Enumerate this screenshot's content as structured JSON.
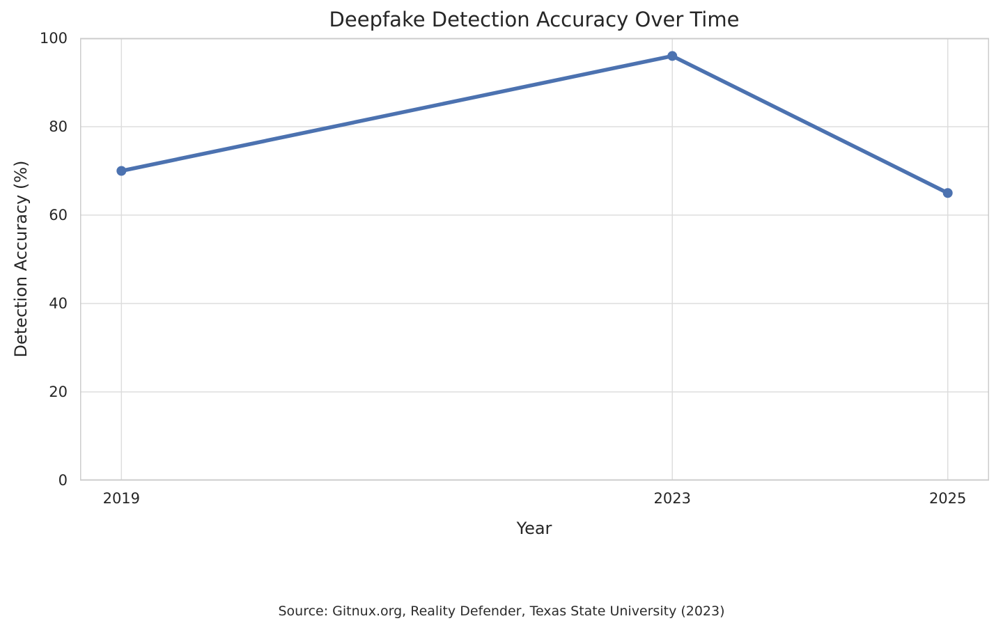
{
  "chart_data": {
    "type": "line",
    "title": "Deepfake Detection Accuracy Over Time",
    "xlabel": "Year",
    "ylabel": "Detection Accuracy (%)",
    "x": [
      2019,
      2023,
      2025
    ],
    "values": [
      70,
      96,
      65
    ],
    "xticks": [
      2019,
      2023,
      2025
    ],
    "yticks": [
      0,
      20,
      40,
      60,
      80,
      100
    ],
    "xlim": [
      2018.7,
      2025.3
    ],
    "ylim": [
      0,
      100
    ],
    "grid": true,
    "legend": false,
    "line_color": "#4C72B0",
    "marker": "circle",
    "grid_color": "#dddddd",
    "spine_color": "#cccccc",
    "background_color": "#ffffff",
    "source": "Source: Gitnux.org, Reality Defender, Texas State University (2023)"
  }
}
